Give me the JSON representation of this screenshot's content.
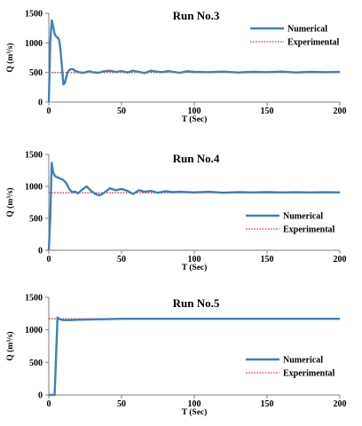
{
  "chart_data": [
    {
      "type": "line",
      "title": "Run No.3",
      "xlabel": "T (Sec)",
      "ylabel": "Q (m³/s)",
      "xlim": [
        0,
        200
      ],
      "ylim": [
        0,
        1500
      ],
      "xticks": [
        "0",
        "50",
        "100",
        "150",
        "200"
      ],
      "yticks": [
        "0",
        "500",
        "1000",
        "1500"
      ],
      "grid": false,
      "legend_position": "top-right",
      "colors": {
        "numerical": "#3F7FBF",
        "experimental": "#E8272A"
      },
      "series": [
        {
          "name": "Numerical",
          "style": "solid",
          "x": [
            0,
            1,
            2,
            3,
            4,
            5,
            6,
            7,
            8,
            9,
            10,
            11,
            12,
            13,
            14,
            15,
            16,
            17,
            18,
            20,
            22,
            24,
            26,
            28,
            30,
            34,
            38,
            42,
            46,
            50,
            54,
            58,
            62,
            66,
            70,
            74,
            78,
            82,
            86,
            90,
            95,
            100,
            110,
            120,
            130,
            140,
            150,
            160,
            170,
            180,
            190,
            200
          ],
          "y": [
            0,
            1000,
            1380,
            1280,
            1150,
            1110,
            1090,
            1060,
            900,
            600,
            300,
            320,
            420,
            500,
            540,
            555,
            560,
            550,
            530,
            510,
            500,
            495,
            510,
            520,
            505,
            495,
            520,
            530,
            510,
            525,
            500,
            530,
            510,
            490,
            530,
            515,
            505,
            525,
            510,
            495,
            520,
            510,
            505,
            515,
            500,
            510,
            505,
            515,
            500,
            510,
            505,
            510
          ]
        },
        {
          "name": "Experimental",
          "style": "dotted",
          "x": [
            0,
            200
          ],
          "y": [
            500,
            500
          ]
        }
      ]
    },
    {
      "type": "line",
      "title": "Run No.4",
      "xlabel": "T (Sec)",
      "ylabel": "Q (m³/s)",
      "xlim": [
        0,
        200
      ],
      "ylim": [
        0,
        1500
      ],
      "xticks": [
        "0",
        "50",
        "100",
        "150",
        "200"
      ],
      "yticks": [
        "0",
        "500",
        "1000",
        "1500"
      ],
      "grid": false,
      "legend_position": "right",
      "colors": {
        "numerical": "#3F7FBF",
        "experimental": "#E8272A"
      },
      "series": [
        {
          "name": "Numerical",
          "style": "solid",
          "x": [
            0,
            1,
            2,
            3,
            4,
            5,
            6,
            8,
            10,
            12,
            14,
            16,
            18,
            20,
            23,
            26,
            29,
            32,
            35,
            38,
            42,
            46,
            50,
            54,
            58,
            62,
            66,
            70,
            75,
            80,
            85,
            90,
            100,
            110,
            120,
            130,
            140,
            150,
            160,
            170,
            180,
            190,
            200
          ],
          "y": [
            0,
            500,
            1370,
            1220,
            1170,
            1150,
            1140,
            1120,
            1100,
            1050,
            960,
            910,
            920,
            890,
            950,
            1000,
            930,
            880,
            860,
            900,
            970,
            940,
            960,
            930,
            880,
            940,
            915,
            930,
            900,
            925,
            910,
            915,
            905,
            915,
            900,
            910,
            905,
            910,
            905,
            908,
            905,
            908,
            905
          ]
        },
        {
          "name": "Experimental",
          "style": "dotted",
          "x": [
            0,
            200
          ],
          "y": [
            900,
            900
          ]
        }
      ]
    },
    {
      "type": "line",
      "title": "Run No.5",
      "xlabel": "T (Sec)",
      "ylabel": "Q (m³/s)",
      "xlim": [
        0,
        200
      ],
      "ylim": [
        0,
        1500
      ],
      "xticks": [
        "0",
        "50",
        "100",
        "150",
        "200"
      ],
      "yticks": [
        "0",
        "500",
        "1000",
        "1500"
      ],
      "grid": false,
      "legend_position": "bottom-right",
      "colors": {
        "numerical": "#3F7FBF",
        "experimental": "#E8272A"
      },
      "series": [
        {
          "name": "Numerical",
          "style": "solid",
          "x": [
            0,
            4,
            5,
            6,
            7,
            8,
            10,
            15,
            20,
            30,
            40,
            50,
            60,
            80,
            100,
            150,
            200
          ],
          "y": [
            0,
            0,
            600,
            1190,
            1170,
            1160,
            1150,
            1150,
            1155,
            1160,
            1165,
            1170,
            1170,
            1170,
            1170,
            1170,
            1170
          ]
        },
        {
          "name": "Experimental",
          "style": "dotted",
          "x": [
            0,
            200
          ],
          "y": [
            1170,
            1170
          ]
        }
      ]
    }
  ]
}
